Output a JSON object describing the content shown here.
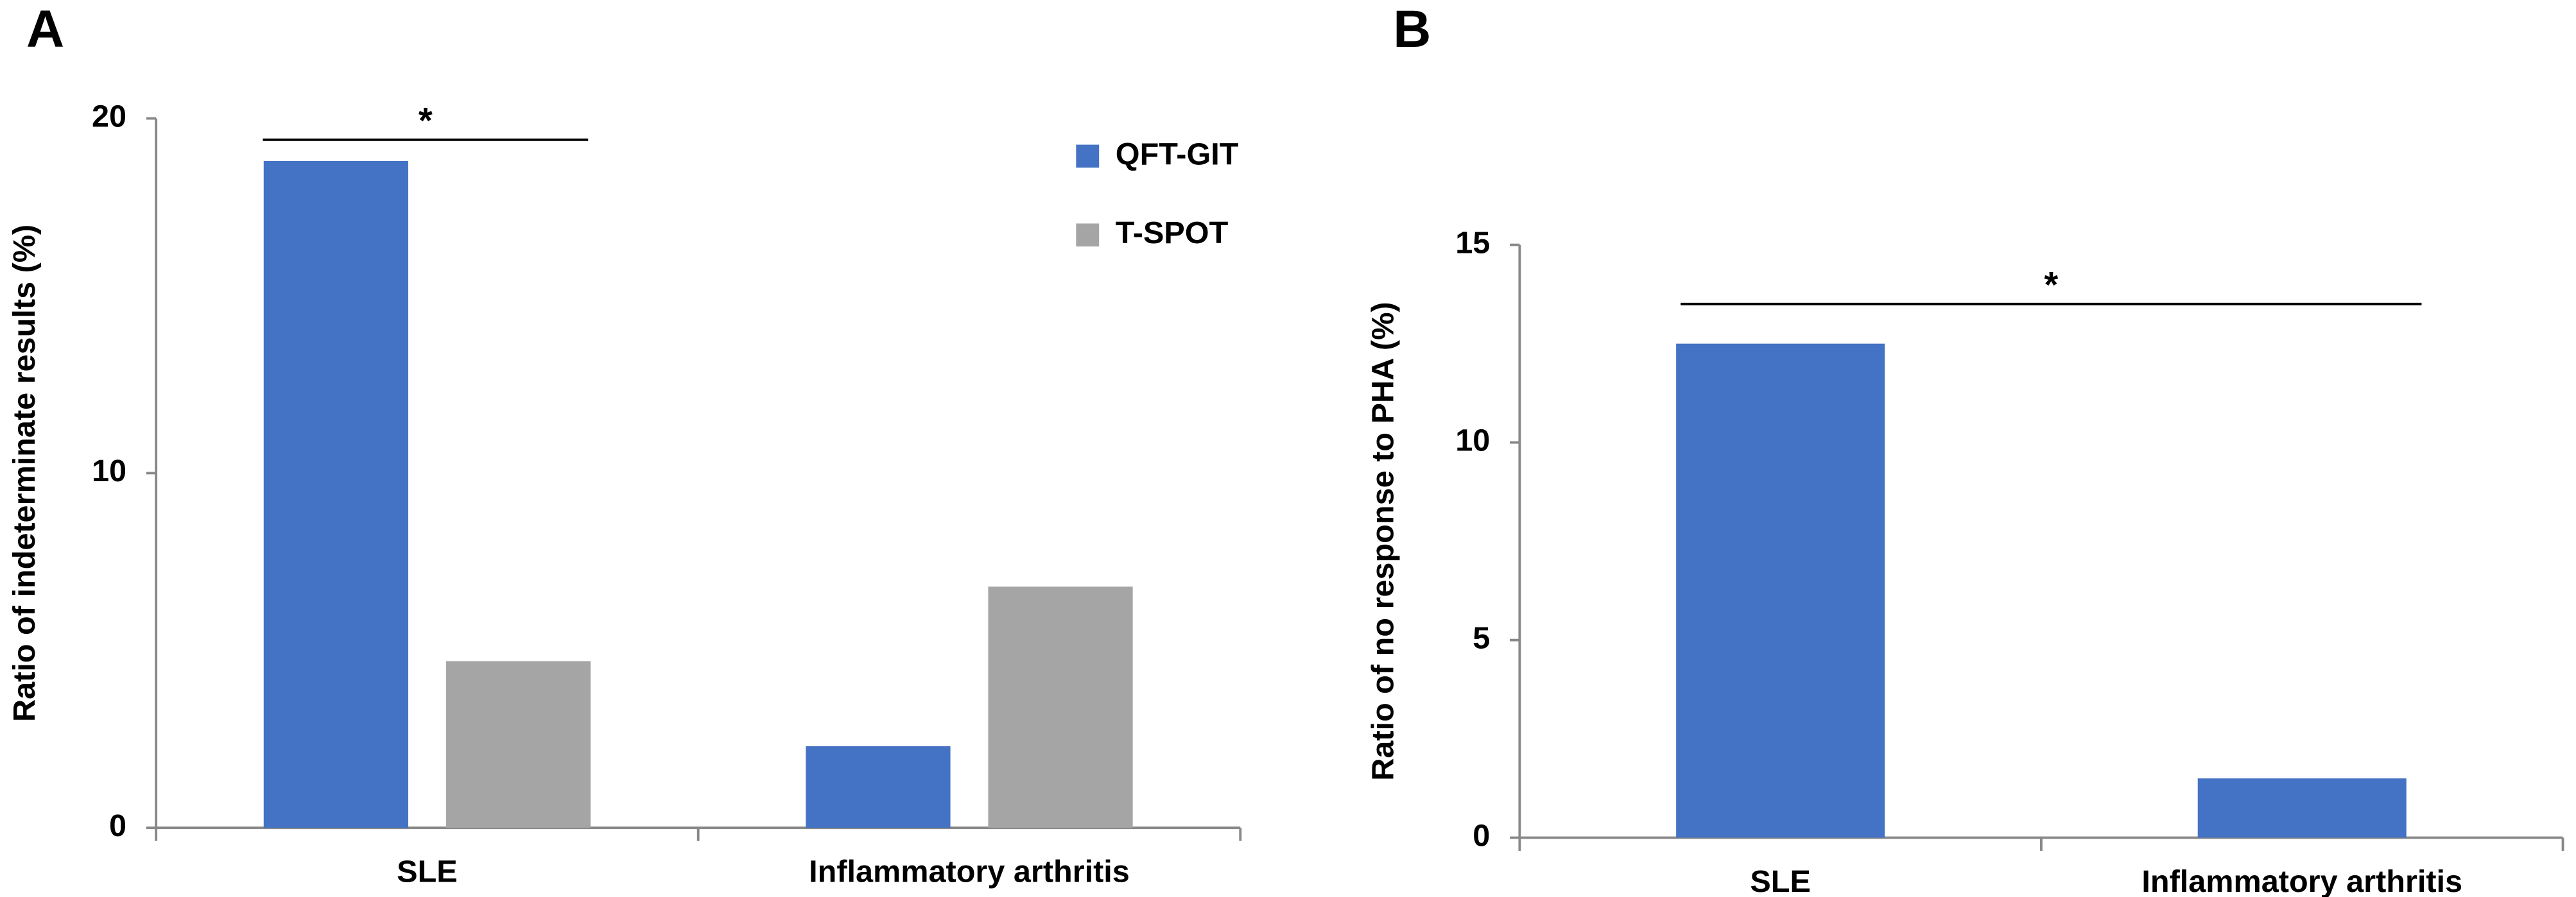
{
  "chart_data": [
    {
      "type": "bar",
      "panel": "A",
      "ylabel": "Ratio of indeterminate results (%)",
      "categories": [
        "SLE",
        "Inflammatory arthritis"
      ],
      "series": [
        {
          "name": "QFT-GIT",
          "color": "#4472c4",
          "values": [
            18.8,
            2.3
          ]
        },
        {
          "name": "T-SPOT",
          "color": "#a5a5a5",
          "values": [
            4.7,
            6.8
          ]
        }
      ],
      "ylim": [
        0,
        20
      ],
      "yticks": [
        0,
        10,
        20
      ],
      "annotation": "*",
      "legend": "upper right"
    },
    {
      "type": "bar",
      "panel": "B",
      "ylabel": "Ratio of no response to PHA (%)",
      "categories": [
        "SLE",
        "Inflammatory arthritis"
      ],
      "series": [
        {
          "color": "#4472c4",
          "values": [
            12.5,
            1.5
          ]
        }
      ],
      "ylim": [
        0,
        15
      ],
      "yticks": [
        0,
        5,
        10,
        15
      ],
      "annotation": "*"
    }
  ]
}
